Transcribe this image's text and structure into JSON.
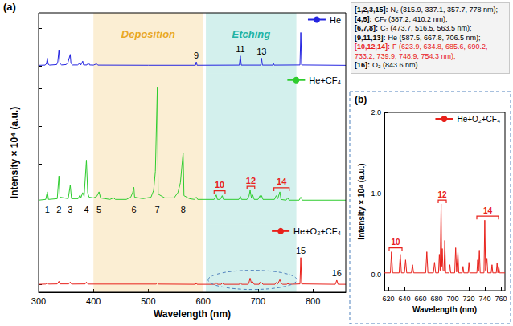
{
  "chart_data": [
    {
      "type": "line",
      "panel": "(a)",
      "xlabel": "Wavelength (nm)",
      "ylabel": "Intensity × 10⁴ (a.u.)",
      "xlim": [
        300,
        860
      ],
      "xticks": [
        300,
        400,
        500,
        600,
        700,
        800
      ],
      "tick_labels": "x",
      "grid": false,
      "legend": "upper right",
      "bands": [
        {
          "label": "Deposition",
          "range": [
            400,
            600
          ],
          "color": "#e9a825"
        },
        {
          "label": "Etching",
          "range": [
            605,
            770
          ],
          "color": "#22b3a3"
        }
      ],
      "series": [
        {
          "name": "He",
          "color": "#2424e0",
          "ylim": [
            -1,
            7
          ],
          "yticks": [
            0,
            5
          ],
          "x": [
            300,
            312,
            314.5,
            315.9,
            317.5,
            320,
            333,
            335,
            337.1,
            339,
            342,
            350,
            353.5,
            357.7,
            359,
            362,
            371,
            375.5,
            377,
            380.5,
            382,
            388,
            391.4,
            393,
            400,
            405.9,
            408,
            500,
            586,
            587.5,
            589,
            666,
            667.8,
            669.5,
            705,
            706.5,
            708,
            727,
            728.1,
            729.5,
            776.5,
            778,
            779.5,
            860
          ],
          "values": [
            0.05,
            0.08,
            0.3,
            1.0,
            0.2,
            0.08,
            0.15,
            0.5,
            2.1,
            0.3,
            0.1,
            0.15,
            0.4,
            1.5,
            0.3,
            0.1,
            0.1,
            0.35,
            0.1,
            0.6,
            0.1,
            0.1,
            0.4,
            0.1,
            0.08,
            0.25,
            0.08,
            0.06,
            0.06,
            0.5,
            0.06,
            0.08,
            1.3,
            0.08,
            0.08,
            1.0,
            0.08,
            0.08,
            0.3,
            0.08,
            0.1,
            4.4,
            0.1,
            0.05
          ],
          "peak_labels": [
            {
              "label": "9",
              "x": 587.5
            },
            {
              "label": "11",
              "x": 667.8
            },
            {
              "label": "13",
              "x": 706.5
            }
          ]
        },
        {
          "name": "He+CF₄",
          "color": "#2ecc2e",
          "ylim": [
            -3,
            17
          ],
          "yticks": [
            0,
            5,
            10,
            15
          ],
          "x": [
            300,
            313,
            315.9,
            318,
            334,
            337.1,
            339,
            354,
            357.7,
            360,
            372,
            375.5,
            377,
            380.5,
            383,
            387.2,
            389.5,
            392,
            400,
            406,
            410.2,
            413,
            430,
            436.5,
            440,
            460,
            468,
            471.5,
            473.7,
            475,
            490,
            505,
            509.8,
            512.9,
            516.5,
            518,
            530,
            547,
            554,
            558.5,
            563.5,
            565,
            575,
            584,
            587.5,
            590,
            620,
            623.9,
            626,
            631,
            634.8,
            637,
            665,
            667.8,
            670,
            680,
            683.4,
            685.6,
            688,
            690.2,
            693,
            700,
            703.7,
            705,
            706.5,
            709,
            730,
            733.2,
            736,
            739.9,
            742,
            751,
            754.3,
            757,
            775,
            778,
            781,
            860
          ],
          "values": [
            0.2,
            0.3,
            1.3,
            0.3,
            0.4,
            3.4,
            0.6,
            0.4,
            2.2,
            0.4,
            0.4,
            0.9,
            0.5,
            1.2,
            0.7,
            5.5,
            1.2,
            0.6,
            0.5,
            0.7,
            1.3,
            0.5,
            0.3,
            0.5,
            0.3,
            0.3,
            0.6,
            1.2,
            1.9,
            0.6,
            0.4,
            0.6,
            1.5,
            4.0,
            15.2,
            1.0,
            0.5,
            0.5,
            1.2,
            2.5,
            6.5,
            0.8,
            0.4,
            0.3,
            0.6,
            0.3,
            0.3,
            0.9,
            0.3,
            0.3,
            0.8,
            0.3,
            0.3,
            0.7,
            0.3,
            0.3,
            0.7,
            1.5,
            0.5,
            0.9,
            0.3,
            0.3,
            0.8,
            0.5,
            0.8,
            0.3,
            0.3,
            0.8,
            0.4,
            1.3,
            0.3,
            0.2,
            0.5,
            0.2,
            0.2,
            0.6,
            0.2,
            0.2
          ],
          "baseline_labels": [
            {
              "label": "1",
              "x": 315.9
            },
            {
              "label": "2",
              "x": 337.1
            },
            {
              "label": "3",
              "x": 357.7
            },
            {
              "label": "4",
              "x": 387.2
            },
            {
              "label": "5",
              "x": 410.2
            },
            {
              "label": "6",
              "x": 473.7
            },
            {
              "label": "7",
              "x": 516.5
            },
            {
              "label": "8",
              "x": 563.5
            }
          ],
          "brackets": [
            {
              "label": "10",
              "range": [
                620,
                640
              ],
              "color": "#e8211b"
            },
            {
              "label": "12",
              "range": [
                680,
                694
              ],
              "color": "#e8211b"
            },
            {
              "label": "14",
              "range": [
                729,
                757
              ],
              "color": "#e8211b"
            }
          ]
        },
        {
          "name": "He+O₂+CF₄",
          "color": "#e8211b",
          "ylim": [
            -1,
            8
          ],
          "yticks": [
            0,
            5
          ],
          "x": [
            300,
            313,
            315.9,
            318,
            334,
            337.1,
            339,
            355,
            357.7,
            360,
            385,
            387.2,
            390,
            514.5,
            516.5,
            518.5,
            586,
            587.5,
            589,
            622,
            623.9,
            626,
            633,
            634.8,
            637,
            666,
            667.8,
            670,
            682,
            683.4,
            685.6,
            688,
            690.2,
            693,
            702,
            703.7,
            705,
            706.5,
            709,
            731,
            733.2,
            736,
            739.9,
            742.6,
            745,
            752,
            754.3,
            757,
            776.5,
            778,
            779.5,
            841,
            843.6,
            846,
            860
          ],
          "values": [
            0.05,
            0.08,
            0.25,
            0.08,
            0.1,
            0.45,
            0.1,
            0.1,
            0.35,
            0.08,
            0.1,
            0.35,
            0.08,
            0.08,
            0.25,
            0.08,
            0.05,
            0.2,
            0.05,
            0.05,
            0.28,
            0.05,
            0.05,
            0.25,
            0.05,
            0.05,
            0.28,
            0.05,
            0.05,
            0.25,
            0.87,
            0.2,
            0.4,
            0.05,
            0.05,
            0.33,
            0.15,
            0.28,
            0.05,
            0.05,
            0.3,
            0.1,
            0.67,
            0.2,
            0.05,
            0.05,
            0.14,
            0.05,
            0.1,
            3.6,
            0.1,
            0.05,
            0.6,
            0.05,
            0.05
          ],
          "peak_labels": [
            {
              "label": "15",
              "x": 778
            },
            {
              "label": "16",
              "x": 843.6
            }
          ]
        }
      ]
    },
    {
      "type": "line",
      "panel": "(b)",
      "xlabel": "Wavelength (nm)",
      "ylabel": "Intensity × 10⁴ (a.u.)",
      "xlim": [
        615,
        765
      ],
      "xticks": [
        620,
        640,
        660,
        680,
        700,
        720,
        740,
        760
      ],
      "ylim": [
        -0.2,
        2.0
      ],
      "yticks": [
        {
          "value": 0,
          "label": "0.0"
        },
        {
          "value": 1,
          "label": "1.0"
        },
        {
          "value": 2,
          "label": "2.0"
        }
      ],
      "grid": false,
      "legend": "upper right",
      "series": [
        {
          "name": "He+O₂+CF₄",
          "color": "#e8211b",
          "x": [
            615,
            622.5,
            623.9,
            625.3,
            633.4,
            634.8,
            636.2,
            640,
            641.4,
            642.8,
            648.6,
            650,
            651.4,
            666.4,
            667.8,
            669.2,
            676,
            677.4,
            678.8,
            682.4,
            683.4,
            684.4,
            685.6,
            686.3,
            687,
            688,
            689.2,
            690.2,
            691.2,
            695.5,
            696.5,
            697.5,
            702.5,
            703.7,
            704.9,
            705.5,
            706.5,
            707.5,
            711.8,
            712.8,
            713.8,
            719.2,
            720.2,
            721.2,
            730.1,
            731.1,
            732.1,
            733.2,
            734.2,
            738.9,
            739.9,
            740.9,
            742.6,
            743.6,
            747.9,
            748.9,
            749.9,
            754.2,
            755.2,
            756.2,
            757.3,
            758.3,
            765
          ],
          "values": [
            0.02,
            0.02,
            0.28,
            0.02,
            0.02,
            0.25,
            0.02,
            0.02,
            0.18,
            0.02,
            0.02,
            0.12,
            0.02,
            0.02,
            0.28,
            0.02,
            0.02,
            0.15,
            0.02,
            0.02,
            0.25,
            0.05,
            0.87,
            0.1,
            0.32,
            0.05,
            0.04,
            0.42,
            0.02,
            0.02,
            0.12,
            0.02,
            0.02,
            0.33,
            0.03,
            0.03,
            0.28,
            0.02,
            0.02,
            0.1,
            0.02,
            0.02,
            0.15,
            0.02,
            0.02,
            0.18,
            0.04,
            0.3,
            0.02,
            0.02,
            0.67,
            0.05,
            0.2,
            0.02,
            0.02,
            0.12,
            0.02,
            0.02,
            0.14,
            0.02,
            0.1,
            0.02,
            0.02
          ],
          "brackets": [
            {
              "label": "10",
              "range": [
                621,
                637
              ],
              "color": "#e8211b"
            },
            {
              "label": "12",
              "range": [
                682,
                692
              ],
              "color": "#e8211b"
            },
            {
              "label": "14",
              "range": [
                730,
                757
              ],
              "color": "#e8211b"
            }
          ]
        }
      ]
    }
  ],
  "key": [
    {
      "ref": "[1,2,3,15]:",
      "text": "N₂ (315.9, 337.1, 357.7, 778 nm);"
    },
    {
      "ref": "[4,5]:",
      "text": "CFₓ (387.2, 410.2 nm);"
    },
    {
      "ref": "[6,7,8]:",
      "text": "C₂ (473.7, 516.5, 563.5 nm);"
    },
    {
      "ref": "[9,11,13]:",
      "text": "He (587.5, 667.8, 706.5 nm);"
    },
    {
      "ref": "[10,12,14]:",
      "text": "F (623.9, 634.8, 685.6, 690.2, 733.2, 739.9, 748.9, 754.3 nm);",
      "color": "#e8211b"
    },
    {
      "ref": "[16]:",
      "text": "O₂ (843.6 nm)."
    }
  ]
}
